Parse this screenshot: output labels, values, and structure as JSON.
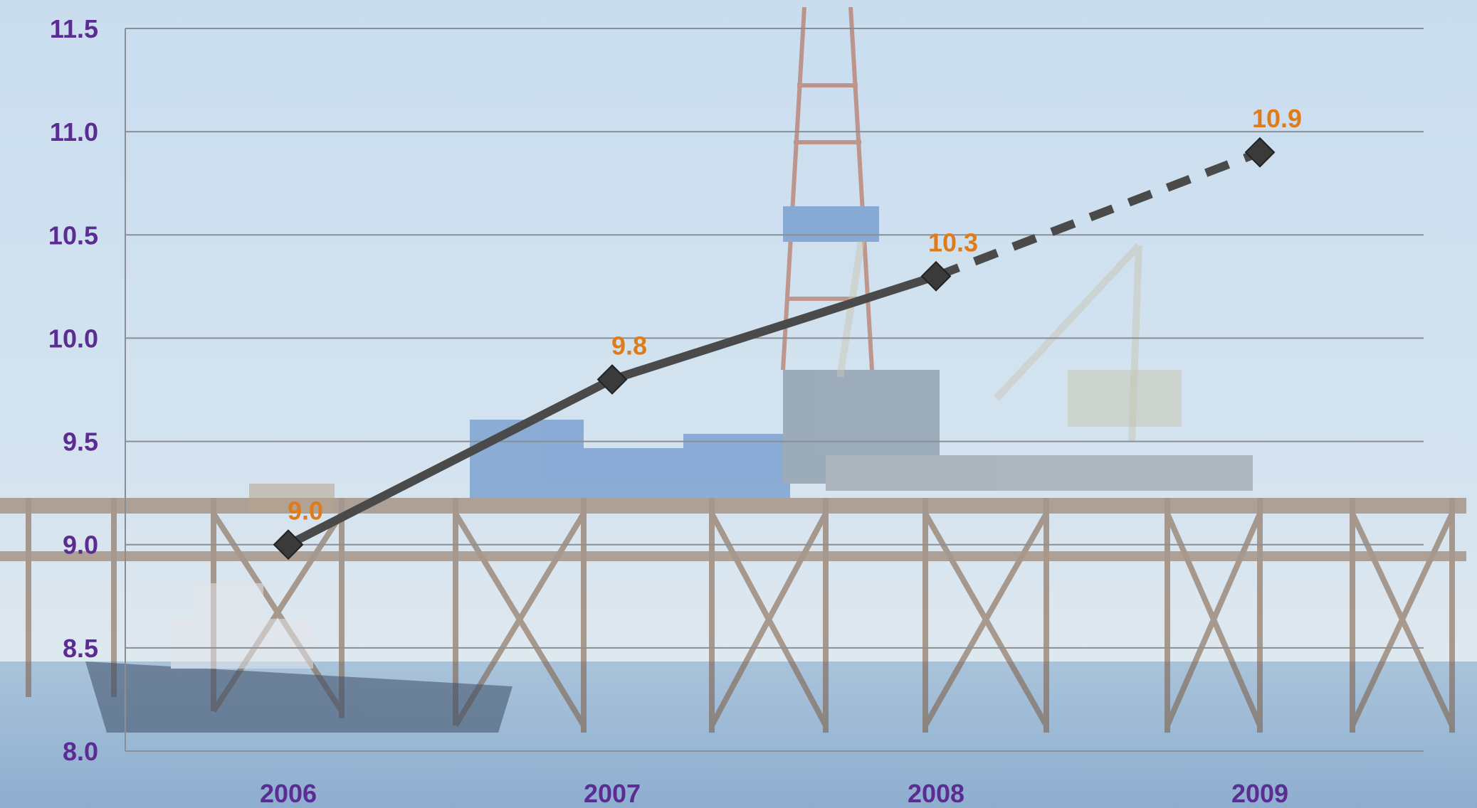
{
  "colors": {
    "tick_text": "#5b2c91",
    "data_label": "#e07b1a",
    "series_line": "#4a4a4a",
    "marker": "#3a3a3a",
    "gridline": "#8a8f96",
    "sky": "#cfe0ee",
    "sea": "#9ab7d2"
  },
  "background": {
    "icon": "offshore-oil-platform-photo"
  },
  "chart_data": {
    "type": "line",
    "title": "",
    "xlabel": "",
    "ylabel": "",
    "categories": [
      "2006",
      "2007",
      "2008",
      "2009"
    ],
    "ylim": [
      8.0,
      11.5
    ],
    "yticks": [
      8.0,
      8.5,
      9.0,
      9.5,
      10.0,
      10.5,
      11.0,
      11.5
    ],
    "ytick_labels": [
      "8.0",
      "8.5",
      "9.0",
      "9.5",
      "10.0",
      "10.5",
      "11.0",
      "11.5"
    ],
    "grid": true,
    "legend": "none",
    "series": [
      {
        "values": [
          9.0,
          9.8,
          10.3,
          10.9
        ],
        "data_labels": [
          "9.0",
          "9.8",
          "10.3",
          "10.9"
        ],
        "line_style": [
          "solid",
          "solid",
          "dashed"
        ],
        "marker": "diamond"
      }
    ]
  }
}
